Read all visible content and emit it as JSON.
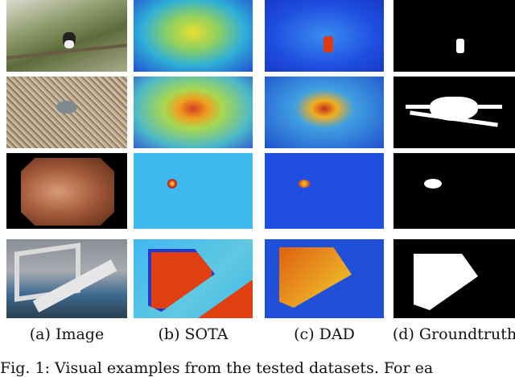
{
  "figure": {
    "columns": [
      {
        "label": "(a) Image"
      },
      {
        "label": "(b) SOTA"
      },
      {
        "label": "(c) DAD"
      },
      {
        "label": "(d) Groundtruth"
      }
    ],
    "rows": [
      "bird",
      "crab",
      "endoscopy-polyp",
      "object"
    ],
    "caption": "Fig. 1: Visual examples from the tested datasets. For ea"
  }
}
